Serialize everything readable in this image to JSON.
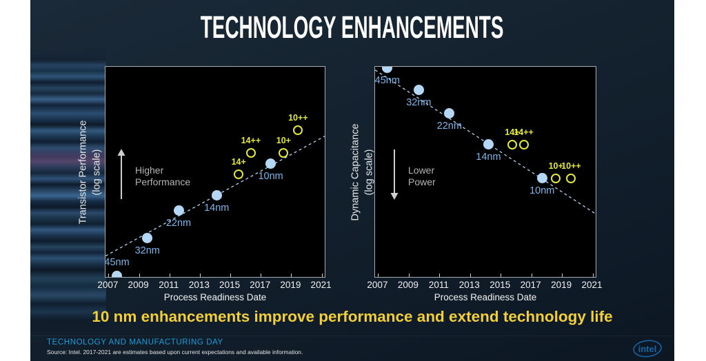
{
  "slide": {
    "title": "TECHNOLOGY ENHANCEMENTS",
    "tagline": "10 nm enhancements improve performance and extend technology life",
    "footer": {
      "event": "TECHNOLOGY AND MANUFACTURING DAY",
      "source": "Source: Intel. 2017-2021 are estimates based upon current expectations and available information.",
      "logo_text": "intel"
    },
    "colors": {
      "accent_yellow": "#e4e93b",
      "tagline_yellow": "#f2cf3a",
      "node_blue": "#b3d7f4",
      "node_label_blue": "#7db5ea",
      "footer_blue": "#1d9cd8",
      "intel_blue": "#1565a8",
      "trendline_blue": "#a9c9e9"
    }
  },
  "chart_data": [
    {
      "type": "scatter",
      "title": "",
      "ylabel": "Transistor Performance",
      "ylabel_sub": "(log scale)",
      "xlabel": "Process Readiness Date",
      "x_ticks": [
        2007,
        2009,
        2011,
        2013,
        2015,
        2017,
        2019,
        2021
      ],
      "x_range": [
        2006.8,
        2021.2
      ],
      "y_axis_note": "unlabeled log scale; y = relative position 0(bottom)-1(top)",
      "grid": false,
      "annotation": {
        "line1": "Higher",
        "line2": "Performance",
        "arrow": "up"
      },
      "series": [
        {
          "kind": "nodes",
          "marker": "filled-circle",
          "points": [
            {
              "label": "45nm",
              "year": 2007.55,
              "y": 0.005,
              "label_pos": "above"
            },
            {
              "label": "32nm",
              "year": 2009.55,
              "y": 0.185,
              "label_pos": "below"
            },
            {
              "label": "22nm",
              "year": 2011.6,
              "y": 0.315,
              "label_pos": "below"
            },
            {
              "label": "14nm",
              "year": 2014.1,
              "y": 0.39,
              "label_pos": "below"
            },
            {
              "label": "10nm",
              "year": 2017.65,
              "y": 0.54,
              "label_pos": "below"
            }
          ]
        },
        {
          "kind": "enhancements",
          "marker": "open-circle",
          "points": [
            {
              "label": "14+",
              "year": 2015.55,
              "y": 0.49,
              "label_pos": "above"
            },
            {
              "label": "14++",
              "year": 2016.35,
              "y": 0.59,
              "label_pos": "above"
            },
            {
              "label": "10+",
              "year": 2018.5,
              "y": 0.59,
              "label_pos": "above"
            },
            {
              "label": "10++",
              "year": 2019.45,
              "y": 0.7,
              "label_pos": "above"
            }
          ]
        }
      ],
      "trendline": {
        "style": "dashed",
        "x1_year": 2006.8,
        "y1": 0.1,
        "x2_year": 2021.2,
        "y2": 0.67
      }
    },
    {
      "type": "scatter",
      "title": "",
      "ylabel": "Dynamic Capacitance",
      "ylabel_sub": "(log scale)",
      "xlabel": "Process Readiness Date",
      "x_ticks": [
        2007,
        2009,
        2011,
        2013,
        2015,
        2017,
        2019,
        2021
      ],
      "x_range": [
        2006.8,
        2021.2
      ],
      "y_axis_note": "unlabeled log scale; y = relative position 0(bottom)-1(top)",
      "grid": false,
      "annotation": {
        "line1": "Lower",
        "line2": "Power",
        "arrow": "down"
      },
      "series": [
        {
          "kind": "nodes",
          "marker": "filled-circle",
          "points": [
            {
              "label": "45nm",
              "year": 2007.6,
              "y": 0.995,
              "label_pos": "below"
            },
            {
              "label": "32nm",
              "year": 2009.65,
              "y": 0.89,
              "label_pos": "below"
            },
            {
              "label": "22nm",
              "year": 2011.65,
              "y": 0.78,
              "label_pos": "below"
            },
            {
              "label": "14nm",
              "year": 2014.2,
              "y": 0.63,
              "label_pos": "below"
            },
            {
              "label": "10nm",
              "year": 2017.7,
              "y": 0.47,
              "label_pos": "below"
            }
          ]
        },
        {
          "kind": "enhancements",
          "marker": "open-circle",
          "points": [
            {
              "label": "14+",
              "year": 2015.75,
              "y": 0.63,
              "label_pos": "above"
            },
            {
              "label": "14++",
              "year": 2016.5,
              "y": 0.63,
              "label_pos": "above"
            },
            {
              "label": "10+",
              "year": 2018.6,
              "y": 0.47,
              "label_pos": "above"
            },
            {
              "label": "10++",
              "year": 2019.6,
              "y": 0.47,
              "label_pos": "above"
            }
          ]
        }
      ],
      "trendline": {
        "style": "dashed",
        "x1_year": 2006.8,
        "y1": 0.985,
        "x2_year": 2021.2,
        "y2": 0.3
      }
    }
  ]
}
